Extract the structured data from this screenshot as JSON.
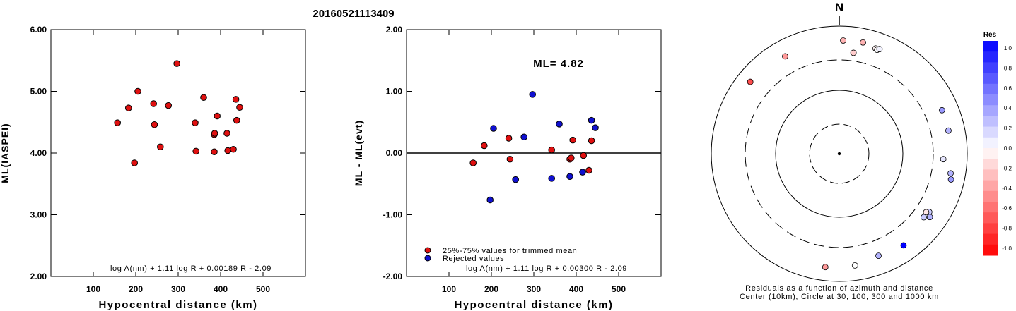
{
  "title": "20160521113409",
  "chart_data": [
    {
      "type": "scatter",
      "id": "left",
      "xlabel": "Hypocentral distance (km)",
      "ylabel": "ML(IASPEI)",
      "xlim": [
        0,
        600
      ],
      "ylim": [
        2.0,
        6.0
      ],
      "xticks": [
        "100",
        "200",
        "300",
        "400",
        "500"
      ],
      "yticks": [
        "2.00",
        "3.00",
        "4.00",
        "5.00",
        "6.00"
      ],
      "formula": "log A(nm) + 1.11 log R + 0.00189 R - 2.09",
      "point_color": "#e01010",
      "points": [
        {
          "x": 157,
          "y": 4.49
        },
        {
          "x": 183,
          "y": 4.73
        },
        {
          "x": 197,
          "y": 3.84
        },
        {
          "x": 205,
          "y": 5.0
        },
        {
          "x": 242,
          "y": 4.8
        },
        {
          "x": 244,
          "y": 4.46
        },
        {
          "x": 258,
          "y": 4.1
        },
        {
          "x": 277,
          "y": 4.77
        },
        {
          "x": 297,
          "y": 5.45
        },
        {
          "x": 340,
          "y": 4.49
        },
        {
          "x": 342,
          "y": 4.03
        },
        {
          "x": 360,
          "y": 4.9
        },
        {
          "x": 385,
          "y": 4.02
        },
        {
          "x": 385,
          "y": 4.3
        },
        {
          "x": 386,
          "y": 4.32
        },
        {
          "x": 392,
          "y": 4.6
        },
        {
          "x": 415,
          "y": 4.32
        },
        {
          "x": 417,
          "y": 4.04
        },
        {
          "x": 430,
          "y": 4.06
        },
        {
          "x": 436,
          "y": 4.87
        },
        {
          "x": 438,
          "y": 4.53
        },
        {
          "x": 445,
          "y": 4.74
        }
      ]
    },
    {
      "type": "scatter",
      "id": "middle",
      "xlabel": "Hypocentral distance (km)",
      "ylabel": "ML - ML(evt)",
      "xlim": [
        0,
        600
      ],
      "ylim": [
        -2.0,
        2.0
      ],
      "xticks": [
        "100",
        "200",
        "300",
        "400",
        "500"
      ],
      "yticks": [
        "-2.00",
        "-1.00",
        "0.00",
        "1.00",
        "2.00"
      ],
      "ml_label": "ML= 4.82",
      "formula": "log A(nm) + 1.11 log R + 0.00300 R - 2.09",
      "legend": [
        {
          "label": "25%-75% values for trimmed mean",
          "color": "#e01010"
        },
        {
          "label": "Rejected values",
          "color": "#1010d0"
        }
      ],
      "points_trimmed": [
        {
          "x": 157,
          "y": -0.16
        },
        {
          "x": 183,
          "y": 0.12
        },
        {
          "x": 241,
          "y": 0.24
        },
        {
          "x": 244,
          "y": -0.1
        },
        {
          "x": 342,
          "y": 0.05
        },
        {
          "x": 385,
          "y": -0.1
        },
        {
          "x": 388,
          "y": -0.08
        },
        {
          "x": 392,
          "y": 0.21
        },
        {
          "x": 417,
          "y": -0.04
        },
        {
          "x": 430,
          "y": -0.28
        },
        {
          "x": 436,
          "y": 0.2
        }
      ],
      "points_rejected": [
        {
          "x": 197,
          "y": -0.76
        },
        {
          "x": 205,
          "y": 0.4
        },
        {
          "x": 257,
          "y": -0.43
        },
        {
          "x": 277,
          "y": 0.26
        },
        {
          "x": 297,
          "y": 0.95
        },
        {
          "x": 342,
          "y": -0.41
        },
        {
          "x": 360,
          "y": 0.47
        },
        {
          "x": 385,
          "y": -0.38
        },
        {
          "x": 415,
          "y": -0.31
        },
        {
          "x": 436,
          "y": 0.53
        },
        {
          "x": 445,
          "y": 0.41
        }
      ]
    },
    {
      "type": "polar-scatter",
      "id": "azimuth",
      "north_label": "N",
      "caption_line1": "Residuals as a function of azimuth and distance",
      "caption_line2": "Center (10km), Circle at 30, 100, 300 and 1000 km",
      "rings_km": [
        30,
        100,
        300,
        1000
      ],
      "points": [
        {
          "azimuth_deg": 2,
          "distance_km": 600,
          "res": -0.3
        },
        {
          "azimuth_deg": 12,
          "distance_km": 610,
          "res": -0.3
        },
        {
          "azimuth_deg": 8,
          "distance_km": 400,
          "res": -0.2
        },
        {
          "azimuth_deg": 19,
          "distance_km": 560,
          "res": -0.05
        },
        {
          "azimuth_deg": 20,
          "distance_km": 545,
          "res": 0.0
        },
        {
          "azimuth_deg": 21,
          "distance_km": 575,
          "res": 0.05
        },
        {
          "azimuth_deg": 331,
          "distance_km": 560,
          "res": -0.4
        },
        {
          "azimuth_deg": 309,
          "distance_km": 620,
          "res": -0.7
        },
        {
          "azimuth_deg": 67,
          "distance_km": 560,
          "res": 0.4
        },
        {
          "azimuth_deg": 78,
          "distance_km": 560,
          "res": 0.3
        },
        {
          "azimuth_deg": 93,
          "distance_km": 430,
          "res": 0.1
        },
        {
          "azimuth_deg": 100,
          "distance_km": 590,
          "res": 0.3
        },
        {
          "azimuth_deg": 103,
          "distance_km": 625,
          "res": 0.4
        },
        {
          "azimuth_deg": 123,
          "distance_km": 480,
          "res": 0.2
        },
        {
          "azimuth_deg": 124,
          "distance_km": 440,
          "res": -0.1
        },
        {
          "azimuth_deg": 127,
          "distance_km": 455,
          "res": 0.2
        },
        {
          "azimuth_deg": 125,
          "distance_km": 540,
          "res": 0.3
        },
        {
          "azimuth_deg": 145,
          "distance_km": 570,
          "res": 1.0
        },
        {
          "azimuth_deg": 159,
          "distance_km": 520,
          "res": 0.3
        },
        {
          "azimuth_deg": 172,
          "distance_km": 590,
          "res": 0.0
        },
        {
          "azimuth_deg": 187,
          "distance_km": 620,
          "res": -0.4
        }
      ]
    }
  ],
  "colorbar": {
    "title": "Res",
    "labels": [
      "1.0",
      "0.8",
      "0.6",
      "0.4",
      "0.2",
      "0.0",
      "-0.2",
      "-0.4",
      "-0.6",
      "-0.8",
      "-1.0"
    ]
  }
}
